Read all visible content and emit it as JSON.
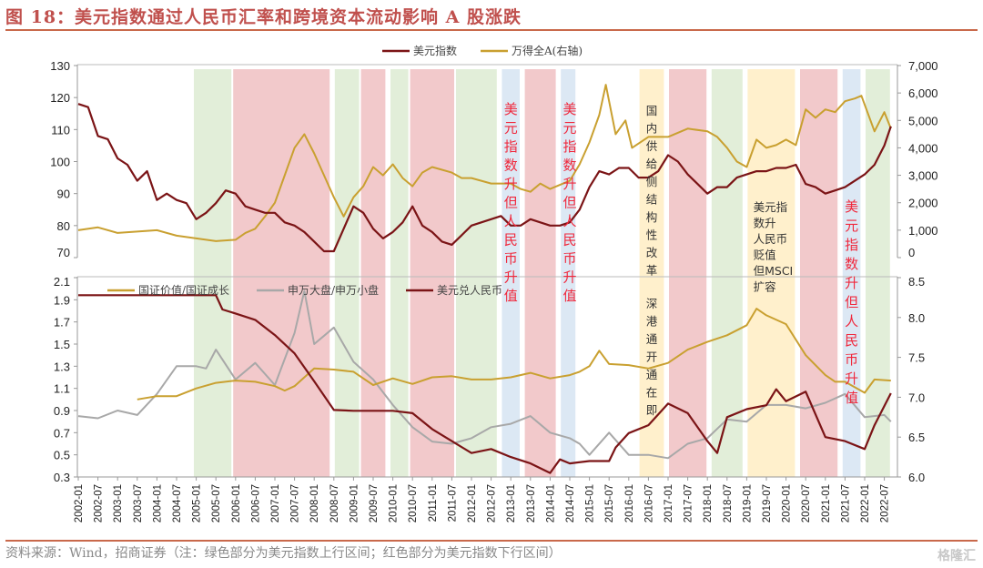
{
  "header": {
    "title": "图 18：美元指数通过人民币汇率和跨境资本流动影响 A 股涨跌"
  },
  "footer": {
    "source": "资料来源：Wind，招商证券（注：绿色部分为美元指数上行区间；红色部分为美元指数下行区间）",
    "watermark": "格隆汇"
  },
  "colors": {
    "usd_index": "#7B1416",
    "wind_a": "#C9A030",
    "value_growth": "#C9A030",
    "large_small": "#A8A8A8",
    "usdcny": "#7B1416",
    "band_green": "#E2EED9",
    "band_red": "#F2C9CB",
    "band_blue": "#DCE8F4",
    "band_yellow": "#FFF0CC",
    "annotation_red": "#F0283C"
  },
  "chart_data": [
    {
      "type": "line",
      "panel": "top",
      "title": "",
      "legend_position": "top-center",
      "legend": [
        "美元指数",
        "万得全A(右轴)"
      ],
      "y_left": {
        "ticks": [
          "130",
          "120",
          "110",
          "100",
          "90",
          "80",
          "70"
        ],
        "range": [
          70,
          130
        ]
      },
      "y_right": {
        "ticks": [
          "7,000",
          "6,000",
          "5,000",
          "4,000",
          "3,000",
          "2,000",
          "1,000",
          "0"
        ],
        "range": [
          0,
          7000
        ]
      },
      "series": [
        {
          "name": "美元指数",
          "axis": "left",
          "color_key": "usd_index",
          "x": [
            "2002-01",
            "2002-04",
            "2002-07",
            "2002-10",
            "2003-01",
            "2003-04",
            "2003-07",
            "2003-10",
            "2004-01",
            "2004-04",
            "2004-07",
            "2004-10",
            "2005-01",
            "2005-04",
            "2005-07",
            "2005-10",
            "2006-01",
            "2006-04",
            "2006-07",
            "2006-10",
            "2007-01",
            "2007-04",
            "2007-07",
            "2007-10",
            "2008-01",
            "2008-04",
            "2008-07",
            "2008-10",
            "2009-01",
            "2009-04",
            "2009-07",
            "2009-10",
            "2010-01",
            "2010-04",
            "2010-07",
            "2010-10",
            "2011-01",
            "2011-04",
            "2011-07",
            "2011-10",
            "2012-01",
            "2012-04",
            "2012-07",
            "2012-10",
            "2013-01",
            "2013-04",
            "2013-07",
            "2013-10",
            "2014-01",
            "2014-04",
            "2014-07",
            "2014-10",
            "2015-01",
            "2015-04",
            "2015-07",
            "2015-10",
            "2016-01",
            "2016-04",
            "2016-07",
            "2016-10",
            "2017-01",
            "2017-04",
            "2017-07",
            "2017-10",
            "2018-01",
            "2018-04",
            "2018-07",
            "2018-10",
            "2019-01",
            "2019-04",
            "2019-07",
            "2019-10",
            "2020-01",
            "2020-04",
            "2020-07",
            "2020-10",
            "2021-01",
            "2021-04",
            "2021-07",
            "2021-10",
            "2022-01",
            "2022-04",
            "2022-07",
            "2022-09"
          ],
          "values": [
            118,
            117,
            108,
            107,
            101,
            99,
            94,
            97,
            88,
            90,
            88,
            87,
            82,
            84,
            87,
            91,
            90,
            86,
            85,
            84,
            84,
            81,
            80,
            78,
            75,
            72,
            72,
            79,
            86,
            84,
            79,
            76,
            78,
            81,
            86,
            80,
            78,
            75,
            74,
            77,
            80,
            81,
            82,
            83,
            80,
            80,
            82,
            81,
            80,
            80,
            81,
            85,
            92,
            97,
            96,
            98,
            98,
            95,
            95,
            97,
            102,
            100,
            96,
            93,
            90,
            92,
            92,
            95,
            96,
            97,
            97,
            98,
            98,
            99,
            93,
            92,
            90,
            91,
            92,
            94,
            96,
            99,
            105,
            111
          ]
        },
        {
          "name": "万得全A(右轴)",
          "axis": "right",
          "color_key": "wind_a",
          "x": [
            "2002-01",
            "2002-07",
            "2003-01",
            "2003-07",
            "2004-01",
            "2004-07",
            "2005-01",
            "2005-07",
            "2006-01",
            "2006-04",
            "2006-07",
            "2006-10",
            "2007-01",
            "2007-04",
            "2007-07",
            "2007-10",
            "2008-01",
            "2008-04",
            "2008-07",
            "2008-10",
            "2009-01",
            "2009-04",
            "2009-07",
            "2009-10",
            "2010-01",
            "2010-04",
            "2010-07",
            "2010-10",
            "2011-01",
            "2011-04",
            "2011-07",
            "2011-10",
            "2012-01",
            "2012-07",
            "2013-01",
            "2013-04",
            "2013-07",
            "2013-10",
            "2014-01",
            "2014-07",
            "2014-10",
            "2015-01",
            "2015-04",
            "2015-06",
            "2015-09",
            "2015-12",
            "2016-02",
            "2016-07",
            "2017-01",
            "2017-07",
            "2018-01",
            "2018-04",
            "2018-07",
            "2018-10",
            "2019-01",
            "2019-04",
            "2019-07",
            "2019-10",
            "2020-01",
            "2020-04",
            "2020-07",
            "2020-10",
            "2021-01",
            "2021-04",
            "2021-07",
            "2021-10",
            "2021-12",
            "2022-04",
            "2022-07",
            "2022-09"
          ],
          "values": [
            1000,
            1100,
            900,
            950,
            1000,
            800,
            700,
            600,
            650,
            900,
            1050,
            1500,
            2000,
            3000,
            4000,
            4500,
            3800,
            3000,
            2200,
            1500,
            2200,
            2600,
            3300,
            3000,
            3400,
            2900,
            2600,
            3100,
            3300,
            3200,
            3100,
            2900,
            2900,
            2700,
            2700,
            2500,
            2400,
            2700,
            2500,
            2800,
            3400,
            4200,
            5200,
            6300,
            4500,
            5000,
            4000,
            4400,
            4400,
            4700,
            4600,
            4400,
            4000,
            3500,
            3300,
            4300,
            4000,
            4100,
            4300,
            4100,
            5400,
            5100,
            5400,
            5300,
            5700,
            5800,
            5900,
            4600,
            5300,
            4700
          ]
        }
      ]
    },
    {
      "type": "line",
      "panel": "bottom",
      "title": "",
      "legend_position": "top-center",
      "legend": [
        "国证价值/国证成长",
        "申万大盘/申万小盘",
        "美元兑人民币"
      ],
      "y_left": {
        "ticks": [
          "2.1",
          "1.9",
          "1.7",
          "1.5",
          "1.3",
          "1.1",
          "0.9",
          "0.7",
          "0.5",
          "0.3"
        ],
        "range": [
          0.3,
          2.1
        ]
      },
      "y_right": {
        "ticks": [
          "8.5",
          "8.0",
          "7.5",
          "7.0",
          "6.5",
          "6.0"
        ],
        "range": [
          6.0,
          8.5
        ]
      },
      "series": [
        {
          "name": "国证价值/国证成长",
          "axis": "left",
          "color_key": "value_growth",
          "x": [
            "2003-07",
            "2004-01",
            "2004-07",
            "2005-01",
            "2005-07",
            "2006-01",
            "2006-07",
            "2007-01",
            "2007-04",
            "2007-07",
            "2008-01",
            "2008-07",
            "2009-01",
            "2009-07",
            "2010-01",
            "2010-07",
            "2011-01",
            "2011-07",
            "2012-01",
            "2012-07",
            "2013-01",
            "2013-07",
            "2014-01",
            "2014-07",
            "2014-10",
            "2015-01",
            "2015-04",
            "2015-07",
            "2016-01",
            "2016-07",
            "2017-01",
            "2017-07",
            "2018-01",
            "2018-07",
            "2019-01",
            "2019-04",
            "2019-07",
            "2020-01",
            "2020-07",
            "2021-01",
            "2021-04",
            "2021-07",
            "2022-01",
            "2022-04",
            "2022-09"
          ],
          "values": [
            1.0,
            1.03,
            1.03,
            1.1,
            1.15,
            1.17,
            1.16,
            1.12,
            1.08,
            1.12,
            1.28,
            1.27,
            1.25,
            1.13,
            1.19,
            1.14,
            1.2,
            1.21,
            1.18,
            1.18,
            1.2,
            1.24,
            1.19,
            1.22,
            1.25,
            1.3,
            1.44,
            1.32,
            1.31,
            1.28,
            1.33,
            1.45,
            1.52,
            1.58,
            1.67,
            1.82,
            1.76,
            1.68,
            1.4,
            1.22,
            1.16,
            1.16,
            1.06,
            1.18,
            1.17
          ]
        },
        {
          "name": "申万大盘/申万小盘",
          "axis": "left",
          "color_key": "large_small",
          "x": [
            "2002-01",
            "2002-07",
            "2003-01",
            "2003-07",
            "2004-01",
            "2004-07",
            "2005-01",
            "2005-04",
            "2005-07",
            "2006-01",
            "2006-07",
            "2007-01",
            "2007-07",
            "2007-10",
            "2008-01",
            "2008-07",
            "2009-01",
            "2009-07",
            "2010-01",
            "2010-07",
            "2011-01",
            "2011-07",
            "2012-01",
            "2012-07",
            "2013-01",
            "2013-07",
            "2014-01",
            "2014-07",
            "2014-10",
            "2015-01",
            "2015-07",
            "2016-01",
            "2016-07",
            "2017-01",
            "2017-07",
            "2018-01",
            "2018-07",
            "2019-01",
            "2019-07",
            "2020-01",
            "2020-07",
            "2021-01",
            "2021-07",
            "2022-01",
            "2022-07",
            "2022-09"
          ],
          "values": [
            0.85,
            0.83,
            0.9,
            0.86,
            1.05,
            1.3,
            1.3,
            1.28,
            1.45,
            1.18,
            1.33,
            1.13,
            1.6,
            1.98,
            1.5,
            1.65,
            1.34,
            1.18,
            0.95,
            0.75,
            0.62,
            0.6,
            0.65,
            0.75,
            0.78,
            0.85,
            0.7,
            0.65,
            0.6,
            0.5,
            0.7,
            0.5,
            0.5,
            0.47,
            0.6,
            0.65,
            0.82,
            0.8,
            0.95,
            0.95,
            0.92,
            0.97,
            1.05,
            0.84,
            0.86,
            0.8
          ]
        },
        {
          "name": "美元兑人民币",
          "axis": "right",
          "color_key": "usdcny",
          "x": [
            "2002-01",
            "2003-01",
            "2004-01",
            "2005-01",
            "2005-07",
            "2005-09",
            "2006-01",
            "2006-07",
            "2007-01",
            "2007-07",
            "2008-01",
            "2008-07",
            "2009-01",
            "2009-07",
            "2010-01",
            "2010-07",
            "2011-01",
            "2011-07",
            "2012-01",
            "2012-07",
            "2013-01",
            "2013-07",
            "2014-01",
            "2014-04",
            "2014-07",
            "2015-01",
            "2015-07",
            "2015-09",
            "2016-01",
            "2016-07",
            "2017-01",
            "2017-07",
            "2018-01",
            "2018-04",
            "2018-07",
            "2019-01",
            "2019-07",
            "2019-10",
            "2020-01",
            "2020-07",
            "2021-01",
            "2021-07",
            "2022-01",
            "2022-04",
            "2022-09"
          ],
          "values": [
            8.28,
            8.28,
            8.28,
            8.28,
            8.28,
            8.1,
            8.05,
            7.97,
            7.78,
            7.55,
            7.2,
            6.84,
            6.83,
            6.83,
            6.83,
            6.8,
            6.6,
            6.45,
            6.3,
            6.35,
            6.25,
            6.17,
            6.05,
            6.22,
            6.17,
            6.2,
            6.2,
            6.37,
            6.55,
            6.65,
            6.92,
            6.8,
            6.45,
            6.3,
            6.75,
            6.85,
            6.9,
            7.1,
            6.95,
            7.07,
            6.5,
            6.45,
            6.35,
            6.65,
            7.05
          ]
        }
      ]
    },
    {
      "type": "annotation",
      "x_ticks": [
        "2002-01",
        "2002-07",
        "2003-01",
        "2003-07",
        "2004-01",
        "2004-07",
        "2005-01",
        "2005-07",
        "2006-01",
        "2006-07",
        "2007-01",
        "2007-07",
        "2008-01",
        "2008-07",
        "2009-01",
        "2009-07",
        "2010-01",
        "2010-07",
        "2011-01",
        "2011-07",
        "2012-01",
        "2012-07",
        "2013-01",
        "2013-07",
        "2014-01",
        "2014-07",
        "2015-01",
        "2015-07",
        "2016-01",
        "2016-07",
        "2017-01",
        "2017-07",
        "2018-01",
        "2018-07",
        "2019-01",
        "2019-07",
        "2020-01",
        "2020-07",
        "2021-01",
        "2021-07",
        "2022-01",
        "2022-07"
      ],
      "bands": [
        {
          "start": "2004-12",
          "end": "2005-12",
          "color_key": "band_green"
        },
        {
          "start": "2005-12",
          "end": "2008-06",
          "color_key": "band_red"
        },
        {
          "start": "2008-07",
          "end": "2009-03",
          "color_key": "band_green"
        },
        {
          "start": "2009-03",
          "end": "2009-11",
          "color_key": "band_red"
        },
        {
          "start": "2009-12",
          "end": "2010-06",
          "color_key": "band_green"
        },
        {
          "start": "2010-06",
          "end": "2011-08",
          "color_key": "band_red"
        },
        {
          "start": "2011-08",
          "end": "2012-09",
          "color_key": "band_green"
        },
        {
          "start": "2012-10",
          "end": "2013-04",
          "color_key": "band_blue"
        },
        {
          "start": "2013-05",
          "end": "2014-03",
          "color_key": "band_red"
        },
        {
          "start": "2014-04",
          "end": "2014-09",
          "color_key": "band_blue"
        },
        {
          "start": "2016-04",
          "end": "2016-12",
          "color_key": "band_yellow"
        },
        {
          "start": "2017-01",
          "end": "2018-01",
          "color_key": "band_red"
        },
        {
          "start": "2018-02",
          "end": "2018-12",
          "color_key": "band_green"
        },
        {
          "start": "2019-01",
          "end": "2020-04",
          "color_key": "band_yellow"
        },
        {
          "start": "2020-05",
          "end": "2021-05",
          "color_key": "band_red"
        },
        {
          "start": "2021-06",
          "end": "2021-12",
          "color_key": "band_blue"
        },
        {
          "start": "2022-01",
          "end": "2022-09",
          "color_key": "band_green"
        }
      ],
      "labels": [
        {
          "text": "美元指数升但人民币升值",
          "at": "2013-01",
          "style": "red"
        },
        {
          "text": "美元指数升但人民币升值",
          "at": "2014-07",
          "style": "red"
        },
        {
          "text": "国内供给侧结构性改革",
          "at": "2016-08",
          "style": "dark"
        },
        {
          "text": "深港通开通在即",
          "at": "2016-08",
          "style": "dark"
        },
        {
          "text": "美元指数升但人民币升值",
          "at": "2021-09",
          "style": "red"
        }
      ],
      "multiline_label": {
        "lines": [
          "美元指",
          "数升",
          "人民币",
          "贬值",
          "但MSCI",
          "扩容"
        ],
        "at": "2019-03"
      }
    }
  ]
}
